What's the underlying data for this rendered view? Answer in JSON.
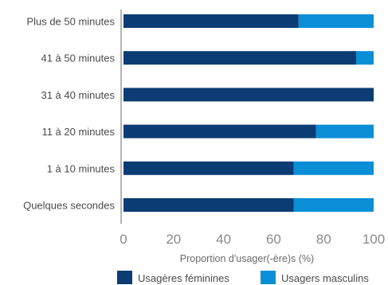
{
  "chart_data": {
    "type": "bar",
    "orientation": "horizontal",
    "stacked": true,
    "categories": [
      "Plus de 50 minutes",
      "41 à 50 minutes",
      "31 à 40 minutes",
      "11 à 20 minutes",
      "1 à 10 minutes",
      "Quelques secondes"
    ],
    "series": [
      {
        "name": "Usagères féminines",
        "color": "#0b3c73",
        "values": [
          70,
          93,
          100,
          77,
          68,
          68
        ]
      },
      {
        "name": "Usagers masculins",
        "color": "#0a8fd6",
        "values": [
          30,
          7,
          0,
          23,
          32,
          32
        ]
      }
    ],
    "xlabel": "Proportion d'usager(-ère)s (%)",
    "ylabel": "",
    "xlim": [
      0,
      100
    ],
    "xticks": [
      "0",
      "20",
      "40",
      "60",
      "80",
      "100"
    ],
    "grid": false,
    "legend": "bottom"
  }
}
